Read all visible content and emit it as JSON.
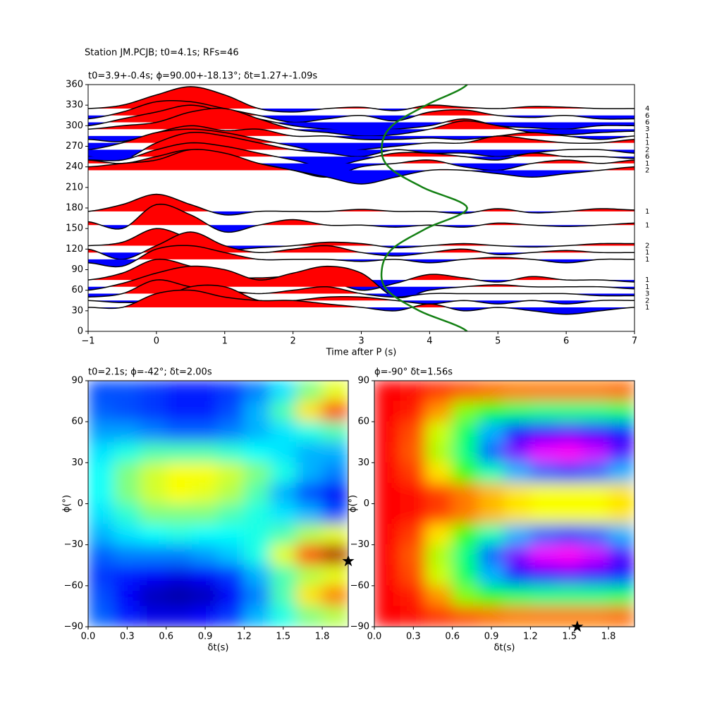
{
  "chart_data": [
    {
      "type": "wiggle",
      "suptitle": "Station JM.PCJB; t0=4.1s; RFs=46",
      "title": "t0=3.9+-0.4s; ϕ=90.00+-18.13°; δt=1.27+-1.09s",
      "xlabel": "Time after P (s)",
      "xlim": [
        -1,
        7
      ],
      "xticks": [
        {
          "value": -1,
          "label": "−1"
        },
        0,
        1,
        2,
        3,
        4,
        5,
        6,
        7
      ],
      "ylim": [
        0,
        360
      ],
      "yticks": [
        0,
        30,
        60,
        90,
        120,
        150,
        180,
        210,
        240,
        270,
        300,
        330,
        360
      ],
      "pos_color": "#ff0000",
      "neg_color": "#0000ff",
      "x": [
        -1,
        -0.5,
        0,
        0.5,
        1,
        1.5,
        2,
        2.5,
        3,
        3.5,
        4,
        4.5,
        5,
        5.5,
        6,
        6.5,
        7
      ],
      "traces": [
        {
          "baz": 325,
          "count": 4,
          "values": [
            0,
            5,
            20,
            32,
            20,
            0,
            -5,
            0,
            2,
            -3,
            5,
            2,
            0,
            3,
            2,
            0,
            0
          ]
        },
        {
          "baz": 315,
          "count": 6,
          "values": [
            -5,
            5,
            20,
            20,
            10,
            0,
            -10,
            -5,
            0,
            -8,
            5,
            8,
            0,
            -3,
            0,
            -5,
            -5
          ]
        },
        {
          "baz": 305,
          "count": 6,
          "values": [
            -5,
            5,
            15,
            25,
            15,
            5,
            -5,
            -10,
            -12,
            -10,
            -5,
            5,
            -5,
            -8,
            -10,
            -5,
            -5
          ]
        },
        {
          "baz": 295,
          "count": 3,
          "values": [
            0,
            5,
            10,
            25,
            30,
            15,
            0,
            -5,
            -10,
            -8,
            0,
            12,
            5,
            -5,
            -8,
            -5,
            -3
          ]
        },
        {
          "baz": 285,
          "count": 1,
          "values": [
            -5,
            -8,
            5,
            15,
            8,
            10,
            0,
            0,
            -5,
            -5,
            -3,
            -5,
            0,
            5,
            0,
            -5,
            0
          ]
        },
        {
          "baz": 275,
          "count": 1,
          "values": [
            -10,
            0,
            15,
            20,
            15,
            5,
            -5,
            -15,
            -10,
            -5,
            0,
            0,
            10,
            5,
            0,
            0,
            5
          ]
        },
        {
          "baz": 265,
          "count": 2,
          "values": [
            -10,
            -15,
            10,
            25,
            20,
            10,
            0,
            -5,
            -10,
            0,
            -5,
            -5,
            -10,
            -5,
            0,
            0,
            -5
          ]
        },
        {
          "baz": 255,
          "count": 6,
          "values": [
            -5,
            -5,
            10,
            20,
            15,
            5,
            -5,
            -15,
            -5,
            5,
            5,
            0,
            -5,
            5,
            0,
            0,
            -3
          ]
        },
        {
          "baz": 245,
          "count": 1,
          "values": [
            5,
            0,
            10,
            20,
            10,
            0,
            -10,
            -20,
            -5,
            0,
            5,
            -5,
            -10,
            0,
            5,
            0,
            5
          ]
        },
        {
          "baz": 235,
          "count": 2,
          "values": [
            5,
            10,
            15,
            30,
            25,
            10,
            0,
            -10,
            -20,
            -10,
            0,
            0,
            -5,
            -10,
            -5,
            0,
            5
          ]
        },
        {
          "baz": 175,
          "count": 1,
          "values": [
            0,
            10,
            25,
            10,
            -5,
            0,
            0,
            0,
            3,
            0,
            0,
            -3,
            4,
            -2,
            0,
            4,
            2
          ]
        },
        {
          "baz": 155,
          "count": 1,
          "values": [
            5,
            -5,
            30,
            15,
            -10,
            0,
            8,
            0,
            0,
            -3,
            0,
            -3,
            3,
            0,
            -2,
            0,
            3
          ]
        },
        {
          "baz": 125,
          "count": 2,
          "values": [
            0,
            5,
            25,
            10,
            -5,
            -3,
            0,
            5,
            3,
            -3,
            0,
            3,
            0,
            -2,
            0,
            3,
            3
          ]
        },
        {
          "baz": 115,
          "count": 1,
          "values": [
            5,
            -10,
            10,
            30,
            10,
            0,
            5,
            10,
            0,
            -5,
            0,
            5,
            -3,
            0,
            3,
            0,
            0
          ]
        },
        {
          "baz": 105,
          "count": 1,
          "values": [
            -5,
            -10,
            15,
            20,
            10,
            0,
            0,
            0,
            -3,
            0,
            -5,
            0,
            3,
            0,
            -5,
            0,
            0
          ]
        },
        {
          "baz": 75,
          "count": 1,
          "values": [
            0,
            10,
            30,
            20,
            5,
            3,
            5,
            0,
            -15,
            -5,
            8,
            3,
            -3,
            5,
            0,
            0,
            -3
          ]
        },
        {
          "baz": 65,
          "count": 1,
          "values": [
            -5,
            5,
            20,
            30,
            25,
            10,
            20,
            30,
            20,
            -15,
            -5,
            0,
            3,
            0,
            0,
            0,
            -3
          ]
        },
        {
          "baz": 55,
          "count": 3,
          "values": [
            -5,
            0,
            20,
            10,
            5,
            0,
            5,
            10,
            0,
            -5,
            0,
            0,
            0,
            0,
            0,
            -3,
            -3
          ]
        },
        {
          "baz": 45,
          "count": 2,
          "values": [
            0,
            -3,
            0,
            20,
            20,
            0,
            0,
            5,
            5,
            0,
            -5,
            0,
            -5,
            0,
            -5,
            0,
            0
          ]
        },
        {
          "baz": 35,
          "count": 1,
          "values": [
            0,
            0,
            20,
            25,
            15,
            10,
            10,
            5,
            0,
            -5,
            5,
            -5,
            0,
            -5,
            -10,
            -5,
            0
          ]
        }
      ],
      "curve": {
        "color": "#138013",
        "x": [
          4.55,
          3.85,
          3.38,
          3.3,
          3.45,
          3.95,
          4.55,
          3.9,
          3.4,
          3.3,
          3.45,
          3.95,
          4.55
        ],
        "y": [
          0,
          30,
          60,
          90,
          120,
          150,
          180,
          210,
          240,
          270,
          300,
          330,
          360
        ]
      }
    },
    {
      "type": "heatmap",
      "colormap": "jet",
      "title": "t0=2.1s; ϕ=-42°; δt=2.00s",
      "xlabel": "δt(s)",
      "ylabel": "ϕ(°)",
      "xlim": [
        0,
        2
      ],
      "ylim": [
        -90,
        90
      ],
      "xticks": [
        {
          "value": 0,
          "label": "0.0"
        },
        0.3,
        0.6,
        0.9,
        1.2,
        1.5,
        1.8
      ],
      "yticks": [
        {
          "value": -90,
          "label": "−90"
        },
        {
          "value": -60,
          "label": "−60"
        },
        {
          "value": -30,
          "label": "−30"
        },
        0,
        30,
        60,
        90
      ],
      "x": [
        0.1,
        0.3,
        0.5,
        0.7,
        0.9,
        1.1,
        1.3,
        1.5,
        1.7,
        1.9
      ],
      "y": [
        82.5,
        67.5,
        52.5,
        37.5,
        22.5,
        7.5,
        -7.5,
        -22.5,
        -37.5,
        -52.5,
        -67.5,
        -82.5
      ],
      "z": [
        [
          0.2,
          0.2,
          0.18,
          0.15,
          0.15,
          0.18,
          0.25,
          0.35,
          0.5,
          0.6
        ],
        [
          0.22,
          0.2,
          0.18,
          0.15,
          0.15,
          0.2,
          0.3,
          0.45,
          0.65,
          0.8
        ],
        [
          0.28,
          0.28,
          0.25,
          0.22,
          0.22,
          0.25,
          0.3,
          0.35,
          0.4,
          0.45
        ],
        [
          0.35,
          0.4,
          0.45,
          0.45,
          0.45,
          0.42,
          0.38,
          0.35,
          0.3,
          0.3
        ],
        [
          0.38,
          0.5,
          0.58,
          0.62,
          0.62,
          0.58,
          0.5,
          0.4,
          0.3,
          0.25
        ],
        [
          0.38,
          0.5,
          0.58,
          0.62,
          0.6,
          0.55,
          0.45,
          0.3,
          0.2,
          0.12
        ],
        [
          0.35,
          0.42,
          0.5,
          0.5,
          0.5,
          0.45,
          0.4,
          0.35,
          0.3,
          0.2
        ],
        [
          0.3,
          0.35,
          0.38,
          0.4,
          0.38,
          0.38,
          0.4,
          0.45,
          0.55,
          0.6
        ],
        [
          0.22,
          0.25,
          0.25,
          0.25,
          0.28,
          0.32,
          0.4,
          0.6,
          0.8,
          0.95
        ],
        [
          0.18,
          0.15,
          0.12,
          0.1,
          0.12,
          0.18,
          0.3,
          0.45,
          0.55,
          0.6
        ],
        [
          0.2,
          0.12,
          0.06,
          0.04,
          0.06,
          0.12,
          0.25,
          0.45,
          0.65,
          0.75
        ],
        [
          0.22,
          0.15,
          0.1,
          0.1,
          0.12,
          0.18,
          0.3,
          0.4,
          0.5,
          0.55
        ]
      ],
      "star": {
        "x": 2.0,
        "y": -42
      }
    },
    {
      "type": "heatmap",
      "colormap": "hsv",
      "title": "ϕ=-90° δt=1.56s",
      "xlabel": "δt(s)",
      "ylabel": "ϕ(°)",
      "xlim": [
        0,
        2
      ],
      "ylim": [
        -90,
        90
      ],
      "xticks": [
        {
          "value": 0,
          "label": "0.0"
        },
        0.3,
        0.6,
        0.9,
        1.2,
        1.5,
        1.8
      ],
      "yticks": [
        {
          "value": -90,
          "label": "−90"
        },
        {
          "value": -60,
          "label": "−60"
        },
        {
          "value": -30,
          "label": "−30"
        },
        0,
        30,
        60,
        90
      ],
      "x": [
        0.1,
        0.3,
        0.5,
        0.7,
        0.9,
        1.1,
        1.3,
        1.5,
        1.7,
        1.9
      ],
      "y": [
        82.5,
        67.5,
        52.5,
        37.5,
        22.5,
        7.5,
        -7.5,
        -22.5,
        -37.5,
        -52.5,
        -67.5,
        -82.5
      ],
      "z": [
        [
          0,
          0.01,
          0.03,
          0.05,
          0.07,
          0.08,
          0.08,
          0.08,
          0.08,
          0.07
        ],
        [
          0,
          0.02,
          0.1,
          0.25,
          0.35,
          0.4,
          0.42,
          0.42,
          0.42,
          0.4
        ],
        [
          0,
          0.05,
          0.2,
          0.4,
          0.55,
          0.65,
          0.7,
          0.72,
          0.7,
          0.65
        ],
        [
          0,
          0.06,
          0.22,
          0.42,
          0.6,
          0.75,
          0.82,
          0.84,
          0.8,
          0.72
        ],
        [
          0,
          0.04,
          0.15,
          0.3,
          0.45,
          0.55,
          0.6,
          0.62,
          0.6,
          0.55
        ],
        [
          0,
          0.01,
          0.04,
          0.08,
          0.12,
          0.15,
          0.17,
          0.17,
          0.17,
          0.15
        ],
        [
          0,
          0.01,
          0.04,
          0.08,
          0.12,
          0.15,
          0.17,
          0.17,
          0.17,
          0.15
        ],
        [
          0,
          0.04,
          0.15,
          0.3,
          0.45,
          0.55,
          0.6,
          0.62,
          0.6,
          0.55
        ],
        [
          0,
          0.06,
          0.22,
          0.42,
          0.6,
          0.75,
          0.82,
          0.84,
          0.8,
          0.72
        ],
        [
          0,
          0.05,
          0.2,
          0.4,
          0.55,
          0.65,
          0.7,
          0.72,
          0.7,
          0.65
        ],
        [
          0,
          0.02,
          0.1,
          0.25,
          0.35,
          0.4,
          0.42,
          0.42,
          0.42,
          0.4
        ],
        [
          0,
          0.01,
          0.03,
          0.05,
          0.07,
          0.08,
          0.08,
          0.08,
          0.08,
          0.07
        ]
      ],
      "star": {
        "x": 1.56,
        "y": -90
      }
    }
  ]
}
